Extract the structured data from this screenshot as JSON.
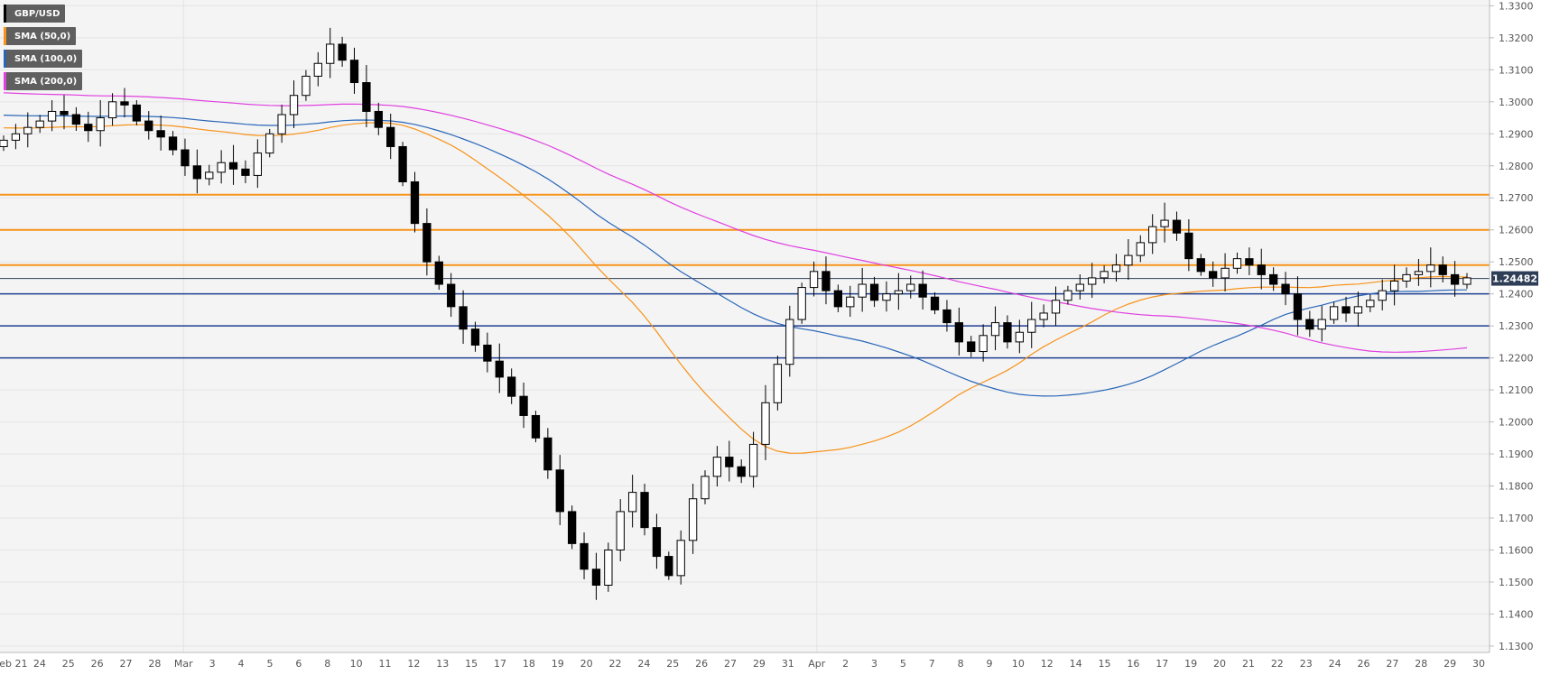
{
  "legend": [
    {
      "label": "GBP/USD",
      "color": "#000000"
    },
    {
      "label": "SMA (50,0)",
      "color": "#f7931a"
    },
    {
      "label": "SMA (100,0)",
      "color": "#2966b8"
    },
    {
      "label": "SMA (200,0)",
      "color": "#e040e0"
    }
  ],
  "current_price": "1.24482",
  "chart_data": {
    "type": "candlestick",
    "symbol": "GBP/USD",
    "y_ticks": [
      "1.3300",
      "1.3200",
      "1.3100",
      "1.3000",
      "1.2900",
      "1.2800",
      "1.2700",
      "1.2600",
      "1.2500",
      "1.2400",
      "1.2300",
      "1.2200",
      "1.2100",
      "1.2000",
      "1.1900",
      "1.1800",
      "1.1700",
      "1.1600",
      "1.1500",
      "1.1400",
      "1.1300"
    ],
    "ylim": [
      1.128,
      1.3318
    ],
    "x_ticks": [
      "Feb 21",
      "24",
      "25",
      "26",
      "27",
      "28",
      "Mar",
      "3",
      "4",
      "5",
      "6",
      "8",
      "10",
      "11",
      "12",
      "13",
      "15",
      "17",
      "18",
      "19",
      "20",
      "22",
      "24",
      "25",
      "26",
      "27",
      "29",
      "31",
      "Apr",
      "2",
      "3",
      "5",
      "7",
      "8",
      "9",
      "10",
      "12",
      "14",
      "15",
      "16",
      "17",
      "19",
      "20",
      "21",
      "22",
      "23",
      "24",
      "26",
      "27",
      "28",
      "29",
      "30"
    ],
    "orange_levels": [
      1.271,
      1.26,
      1.249
    ],
    "blue_levels": [
      1.24,
      1.23,
      1.22
    ],
    "current_price_value": 1.24482,
    "colors": {
      "up": "#ffffff",
      "down": "#000000",
      "sma50": "#f7931a",
      "sma100": "#2966b8",
      "sma200": "#e040e0",
      "orange_level": "#f7931a",
      "blue_level": "#1f3f8f"
    },
    "closes": [
      1.288,
      1.29,
      1.292,
      1.294,
      1.297,
      1.296,
      1.293,
      1.291,
      1.295,
      1.3,
      1.299,
      1.294,
      1.291,
      1.289,
      1.285,
      1.28,
      1.276,
      1.278,
      1.281,
      1.279,
      1.277,
      1.284,
      1.29,
      1.296,
      1.302,
      1.308,
      1.312,
      1.318,
      1.313,
      1.306,
      1.297,
      1.292,
      1.286,
      1.275,
      1.262,
      1.25,
      1.243,
      1.236,
      1.229,
      1.224,
      1.219,
      1.214,
      1.208,
      1.202,
      1.195,
      1.185,
      1.172,
      1.162,
      1.154,
      1.149,
      1.16,
      1.172,
      1.178,
      1.167,
      1.158,
      1.152,
      1.163,
      1.176,
      1.183,
      1.189,
      1.186,
      1.183,
      1.193,
      1.206,
      1.218,
      1.232,
      1.242,
      1.247,
      1.241,
      1.236,
      1.239,
      1.243,
      1.238,
      1.24,
      1.241,
      1.243,
      1.239,
      1.235,
      1.231,
      1.225,
      1.222,
      1.227,
      1.231,
      1.225,
      1.228,
      1.232,
      1.234,
      1.238,
      1.241,
      1.243,
      1.245,
      1.247,
      1.249,
      1.252,
      1.256,
      1.261,
      1.263,
      1.259,
      1.251,
      1.247,
      1.245,
      1.248,
      1.251,
      1.249,
      1.246,
      1.243,
      1.24,
      1.232,
      1.229,
      1.232,
      1.236,
      1.234,
      1.236,
      1.238,
      1.241,
      1.244,
      1.246,
      1.247,
      1.249,
      1.246,
      1.243,
      1.245
    ]
  }
}
